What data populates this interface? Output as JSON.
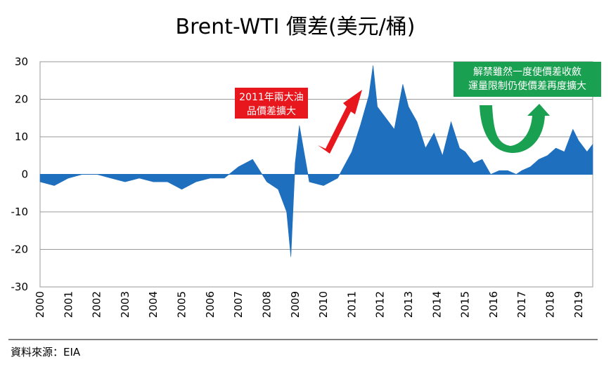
{
  "chart_data": {
    "type": "area",
    "title": "Brent-WTI 價差(美元/桶)",
    "source": "資料來源：EIA",
    "ylim": [
      -30,
      30
    ],
    "yticks": [
      "30",
      "20",
      "10",
      "0",
      "-10",
      "-20",
      "-30"
    ],
    "xticks": [
      "2000",
      "2001",
      "2002",
      "2003",
      "2004",
      "2005",
      "2006",
      "2007",
      "2008",
      "2009",
      "2010",
      "2011",
      "2012",
      "2013",
      "2014",
      "2015",
      "2016",
      "2017",
      "2018",
      "2019"
    ],
    "grid": true,
    "series_color": "#1f6fbf",
    "series": [
      {
        "x": [
          2000.0,
          2000.5,
          2001.0,
          2001.5,
          2002.0,
          2002.5,
          2003.0,
          2003.5,
          2004.0,
          2004.5,
          2005.0,
          2005.5,
          2006.0,
          2006.5,
          2007.0,
          2007.5,
          2008.0,
          2008.4,
          2008.7,
          2008.85,
          2009.0,
          2009.15,
          2009.5,
          2010.0,
          2010.5,
          2011.0,
          2011.3,
          2011.6,
          2011.75,
          2011.9,
          2012.2,
          2012.5,
          2012.8,
          2013.0,
          2013.3,
          2013.6,
          2013.9,
          2014.2,
          2014.5,
          2014.8,
          2015.0,
          2015.3,
          2015.6,
          2015.9,
          2016.2,
          2016.5,
          2016.8,
          2017.0,
          2017.3,
          2017.6,
          2017.9,
          2018.2,
          2018.5,
          2018.8,
          2019.0,
          2019.3,
          2019.5
        ],
        "y": [
          -2,
          -3,
          -1,
          0,
          0,
          -1,
          -2,
          -1,
          -2,
          -2,
          -4,
          -2,
          -1,
          -1,
          2,
          4,
          -2,
          -4,
          -10,
          -22,
          3,
          13,
          -2,
          -3,
          -1,
          6,
          13,
          21,
          29,
          18,
          15,
          12,
          24,
          18,
          14,
          7,
          11,
          5,
          14,
          7,
          6,
          3,
          4,
          0,
          1,
          1,
          0,
          1,
          2,
          4,
          5,
          7,
          6,
          12,
          9,
          6,
          8
        ]
      }
    ],
    "annotations": [
      {
        "lines": [
          "2011年兩大油",
          "品價差擴大"
        ],
        "color": "#e8161d"
      },
      {
        "lines": [
          "解禁雖然一度使價差收斂",
          "運量限制仍使價差再度擴大"
        ],
        "color": "#19a050"
      }
    ]
  }
}
